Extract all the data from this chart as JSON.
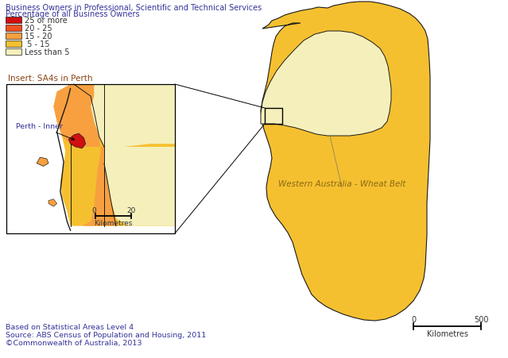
{
  "title_line1": "Business Owners in Professional, Scientific and Technical Services",
  "title_line2": "Percentage of all Business Owners",
  "legend_items": [
    {
      "label": "25 or more",
      "color": "#d01010"
    },
    {
      "label": "20 - 25",
      "color": "#f05020"
    },
    {
      "label": "15 - 20",
      "color": "#f8a040"
    },
    {
      "label": " 5 - 15",
      "color": "#f5c030"
    },
    {
      "label": "Less than 5",
      "color": "#f5f0bb"
    }
  ],
  "insert_label": "Insert: SA4s in Perth",
  "label_perth_inner": "Perth - Inner",
  "label_wheat_belt": "Western Australia - Wheat Belt",
  "footer_line1": "Based on Statistical Areas Level 4",
  "footer_line2": "Source: ABS Census of Population and Housing, 2011",
  "footer_line3": "©Commonwealth of Australia, 2013",
  "scale_main_0": "0",
  "scale_main_500": "500",
  "scale_main_km": "Kilometres",
  "scale_insert_0": "0",
  "scale_insert_20": "20",
  "scale_insert_km": "Kilometres",
  "bg_color": "#ffffff",
  "wa_main_color": "#f5c030",
  "wheat_belt_color": "#f5f0bb",
  "perth_inner_color": "#d01010",
  "perth_orange_color": "#f8a040",
  "perth_gold_color": "#f5c030",
  "perth_light_color": "#f5f0bb",
  "ocean_color": "#ffffff",
  "border_color": "#1a1a1a",
  "text_color_title": "#333399",
  "text_color_footer": "#333399",
  "text_color_insert": "#8b4513",
  "text_color_label": "#8b6914",
  "text_color_perth": "#333399"
}
